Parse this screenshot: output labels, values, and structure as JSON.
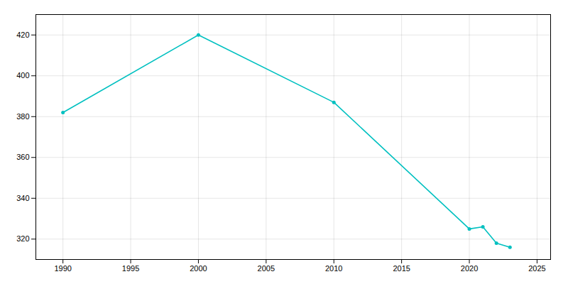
{
  "chart_data": {
    "type": "line",
    "x": [
      1990,
      2000,
      2010,
      2020,
      2021,
      2022,
      2023
    ],
    "values": [
      382,
      420,
      387,
      325,
      326,
      318,
      316
    ],
    "color": "#00c0c0",
    "marker": "circle",
    "xlim": [
      1988,
      2026
    ],
    "xticks": [
      1990,
      1995,
      2000,
      2005,
      2010,
      2015,
      2020,
      2025
    ],
    "ylim": [
      310,
      430
    ],
    "yticks": [
      320,
      340,
      360,
      380,
      400,
      420
    ],
    "grid": true
  }
}
